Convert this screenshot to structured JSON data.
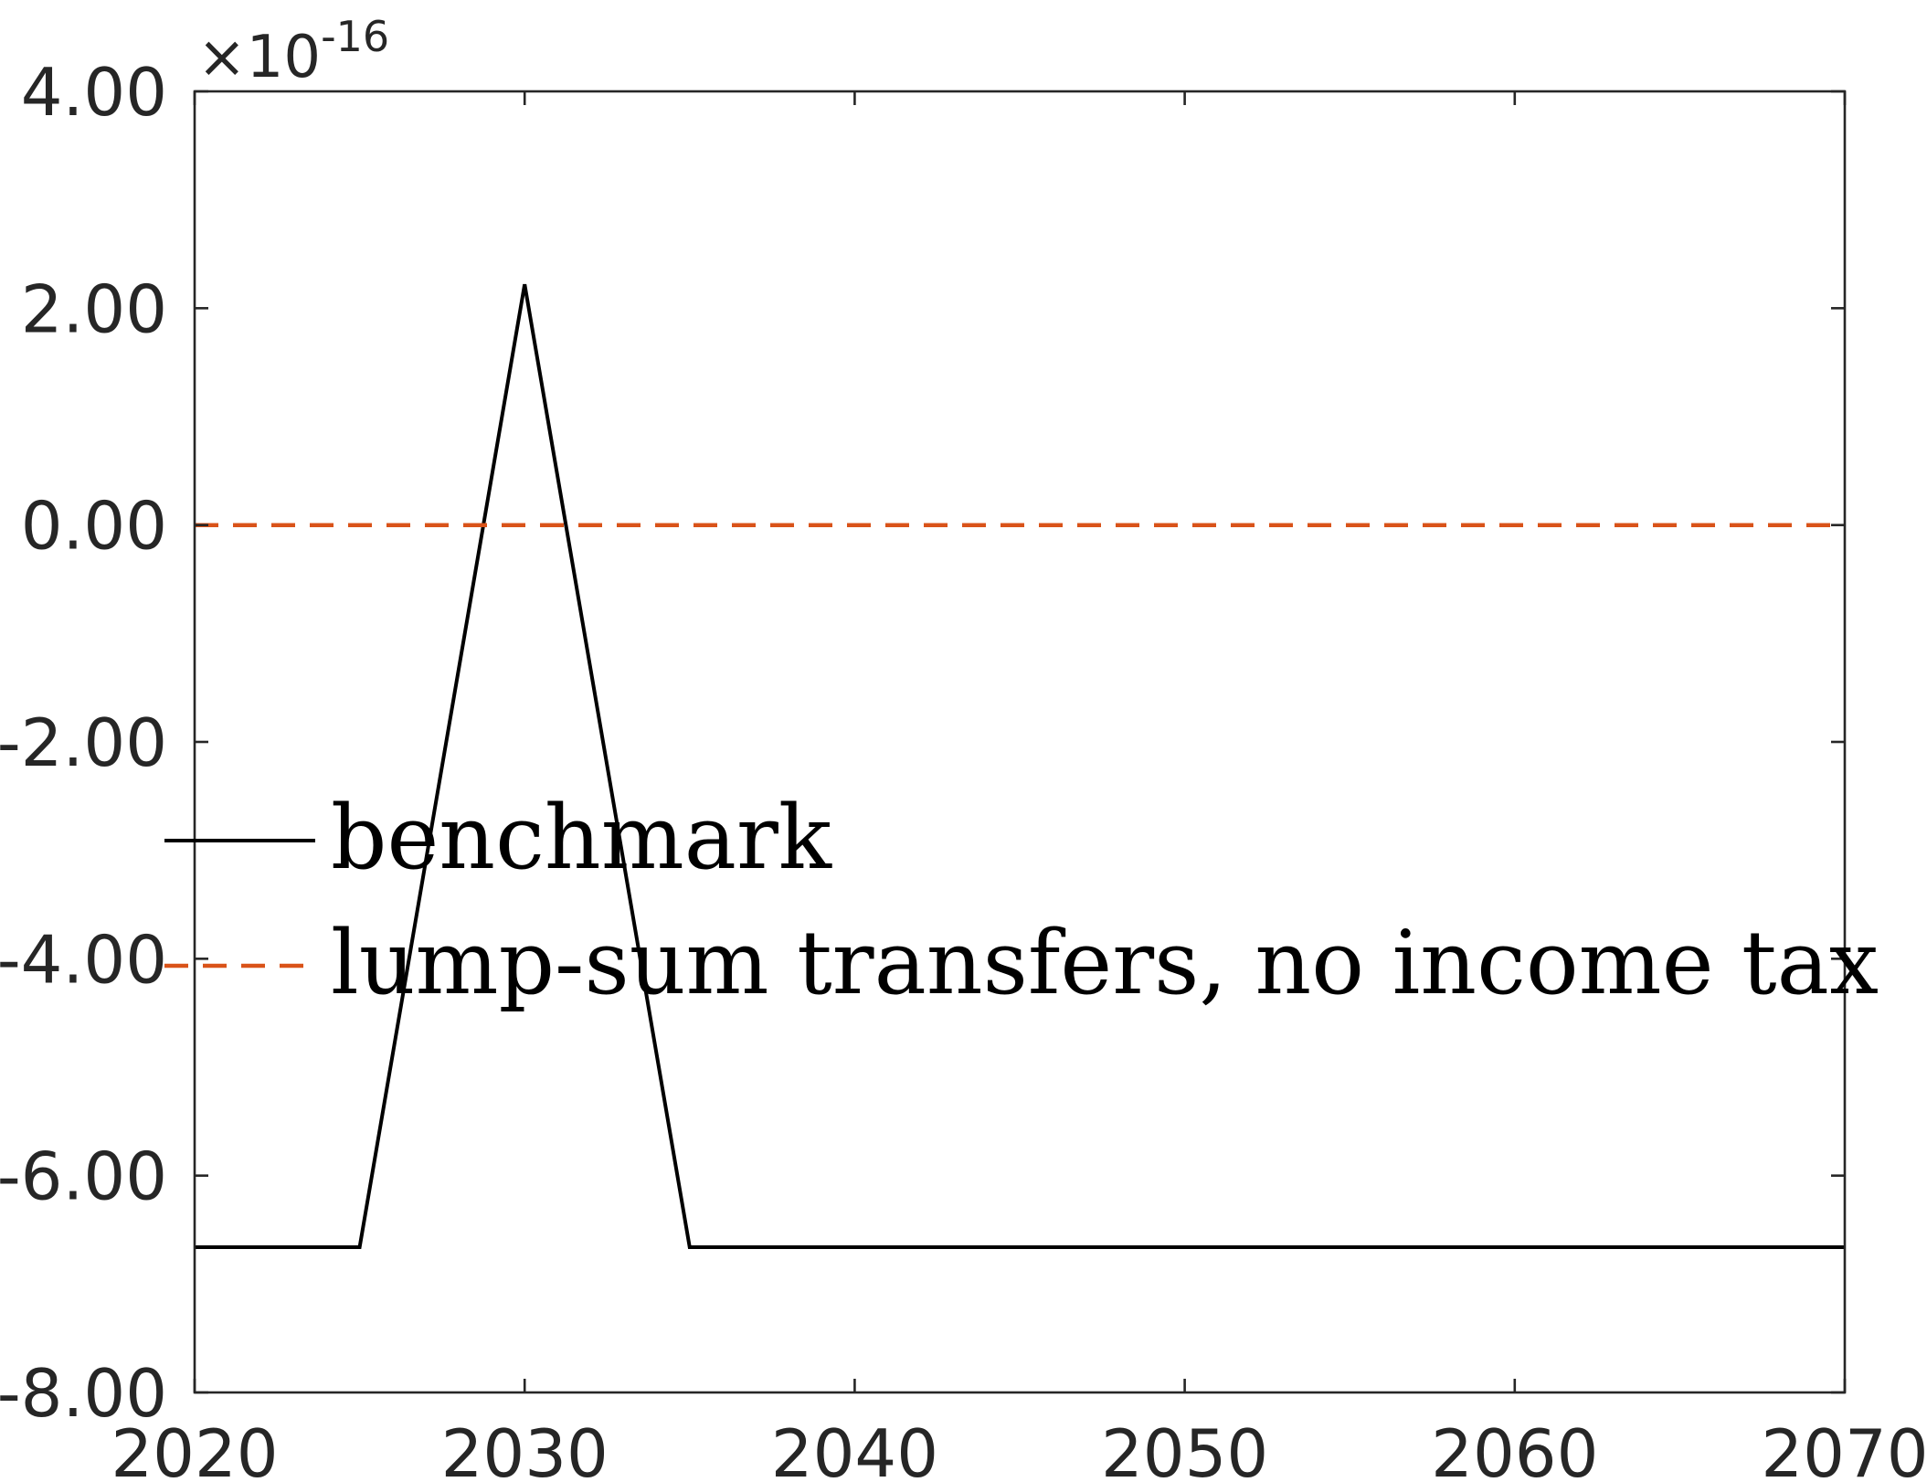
{
  "chart_data": {
    "type": "line",
    "title": "",
    "xlabel": "",
    "ylabel": "",
    "xlim": [
      2020,
      2070
    ],
    "ylim": [
      -8e-16,
      4e-16
    ],
    "x_ticks": [
      2020,
      2030,
      2040,
      2050,
      2060,
      2070
    ],
    "x_tick_labels": [
      "2020",
      "2030",
      "2040",
      "2050",
      "2060",
      "2070"
    ],
    "y_ticks": [
      4e-16,
      2e-16,
      0,
      -2e-16,
      -4e-16,
      -6e-16,
      -8e-16
    ],
    "y_tick_labels": [
      "4.00",
      "2.00",
      "0.00",
      "-2.00",
      "-4.00",
      "-6.00",
      "-8.00"
    ],
    "y_exponent": {
      "prefix": "×10",
      "power": "-16"
    },
    "grid": false,
    "legend_position": "left",
    "series": [
      {
        "name": "benchmark",
        "color": "#000000",
        "style": "solid",
        "x": [
          2020,
          2025,
          2030,
          2035,
          2070
        ],
        "y": [
          -6.66e-16,
          -6.66e-16,
          2.22e-16,
          -6.66e-16,
          -6.66e-16
        ]
      },
      {
        "name": "lump-sum transfers, no income tax",
        "color": "#D95319",
        "style": "dashed",
        "x": [
          2020,
          2070
        ],
        "y": [
          0,
          0
        ]
      }
    ]
  }
}
